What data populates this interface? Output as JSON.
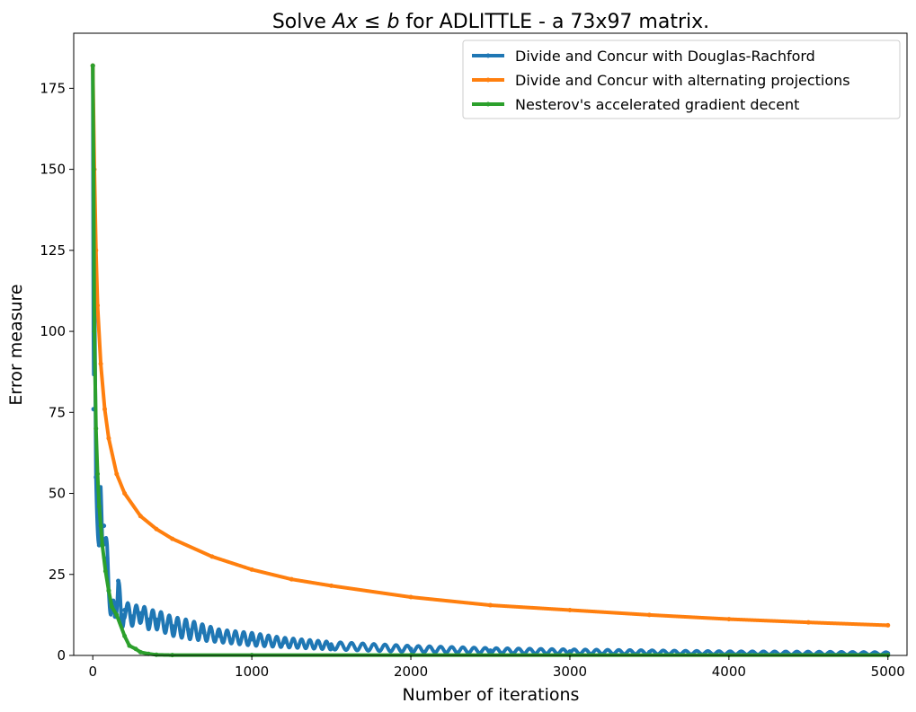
{
  "chart_data": {
    "type": "line",
    "title": "Solve Ax ≤ b for ADLITTLE - a 73x97 matrix.",
    "title_parts": {
      "prefix": "Solve ",
      "math": "Ax",
      "leq": " ≤ ",
      "math_b": "b",
      "suffix": " for ADLITTLE - a 73x97 matrix."
    },
    "xlabel": "Number of iterations",
    "ylabel": "Error measure",
    "xlim": [
      -120,
      5120
    ],
    "ylim": [
      0,
      192
    ],
    "xticks": [
      0,
      1000,
      2000,
      3000,
      4000,
      5000
    ],
    "xtick_labels": [
      "0",
      "1000",
      "2000",
      "3000",
      "4000",
      "5000"
    ],
    "yticks": [
      0,
      25,
      50,
      75,
      100,
      125,
      150,
      175
    ],
    "ytick_labels": [
      "0",
      "25",
      "50",
      "75",
      "100",
      "125",
      "150",
      "175"
    ],
    "grid": false,
    "legend_position": "top-right",
    "series": [
      {
        "name": "Divide and Concur with Douglas-Rachford",
        "color": "#1f77b4",
        "x": [
          0,
          5,
          10,
          20,
          30,
          40,
          50,
          60,
          70,
          80,
          90,
          100,
          120,
          140,
          160,
          180,
          200,
          250,
          300,
          350,
          400,
          500,
          600,
          700,
          800,
          1000,
          1200,
          1500,
          2000,
          2500,
          3000,
          3500,
          4000,
          4500,
          5000
        ],
        "y": [
          182,
          76,
          110,
          55,
          44,
          34,
          46,
          35,
          40,
          36,
          30,
          20,
          14,
          12,
          23,
          10,
          14,
          12,
          13,
          11,
          11,
          9,
          8,
          7,
          6,
          5,
          4,
          3,
          2,
          1.5,
          1.2,
          1,
          0.8,
          0.7,
          0.6
        ],
        "oscillation_amplitude": [
          0,
          4,
          8,
          6,
          5,
          6,
          6,
          5,
          5,
          5,
          4,
          4,
          4,
          4,
          4,
          3,
          3,
          3,
          3,
          3,
          3,
          3,
          3,
          2.5,
          2,
          2,
          1.5,
          1.2,
          1,
          0.8,
          0.7,
          0.6,
          0.5,
          0.5,
          0.4
        ]
      },
      {
        "name": "Divide and Concur with alternating projections",
        "color": "#ff7f0e",
        "x": [
          0,
          10,
          20,
          30,
          50,
          75,
          100,
          150,
          200,
          300,
          400,
          500,
          750,
          1000,
          1250,
          1500,
          2000,
          2500,
          3000,
          3500,
          4000,
          4500,
          5000
        ],
        "y": [
          182,
          150,
          125,
          108,
          90,
          76,
          67,
          56,
          50,
          43,
          39,
          36,
          30.5,
          26.5,
          23.5,
          21.5,
          18,
          15.5,
          14,
          12.5,
          11.2,
          10.2,
          9.3
        ]
      },
      {
        "name": "Nesterov's accelerated gradient decent",
        "color": "#2ca02c",
        "x": [
          0,
          5,
          10,
          20,
          30,
          40,
          50,
          60,
          80,
          100,
          120,
          150,
          200,
          230,
          270,
          300,
          350,
          400,
          500,
          1000,
          2000,
          3000,
          4000,
          5000
        ],
        "y": [
          182,
          150,
          100,
          70,
          56,
          46,
          40,
          34,
          26,
          20,
          15,
          12.5,
          6,
          3,
          2,
          1,
          0.5,
          0.2,
          0.1,
          0.1,
          0.1,
          0.1,
          0.1,
          0.1
        ]
      }
    ]
  }
}
